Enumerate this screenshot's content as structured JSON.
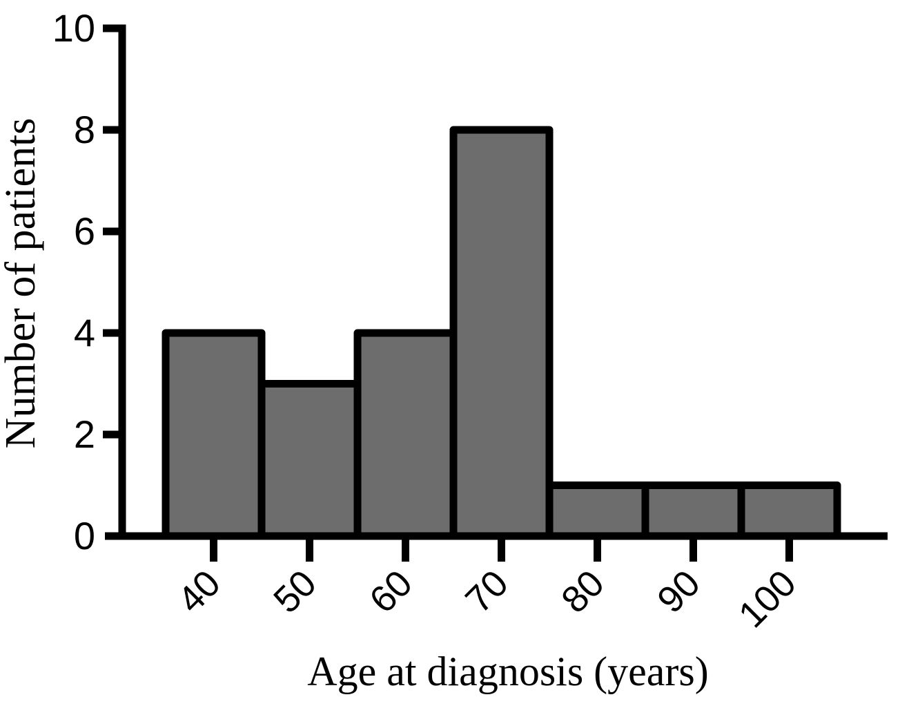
{
  "figure": {
    "background": "#ffffff",
    "text_color": "#000000"
  },
  "chart_data": {
    "type": "bar",
    "subtype": "histogram",
    "title": "",
    "xlabel": "Age at diagnosis (years)",
    "ylabel": "Number of patients",
    "categories": [
      "40",
      "50",
      "60",
      "70",
      "80",
      "90",
      "100"
    ],
    "values": [
      4,
      3,
      4,
      8,
      1,
      1,
      1
    ],
    "ylim": [
      0,
      10
    ],
    "yticks": [
      10,
      8,
      6,
      4,
      2,
      0
    ],
    "ytick_step": 2,
    "x_tick_rotation": -45,
    "grid": false,
    "legend": null,
    "bar_fill": "#6d6d6d",
    "bar_border": "#000000",
    "axis_color": "#000000"
  }
}
